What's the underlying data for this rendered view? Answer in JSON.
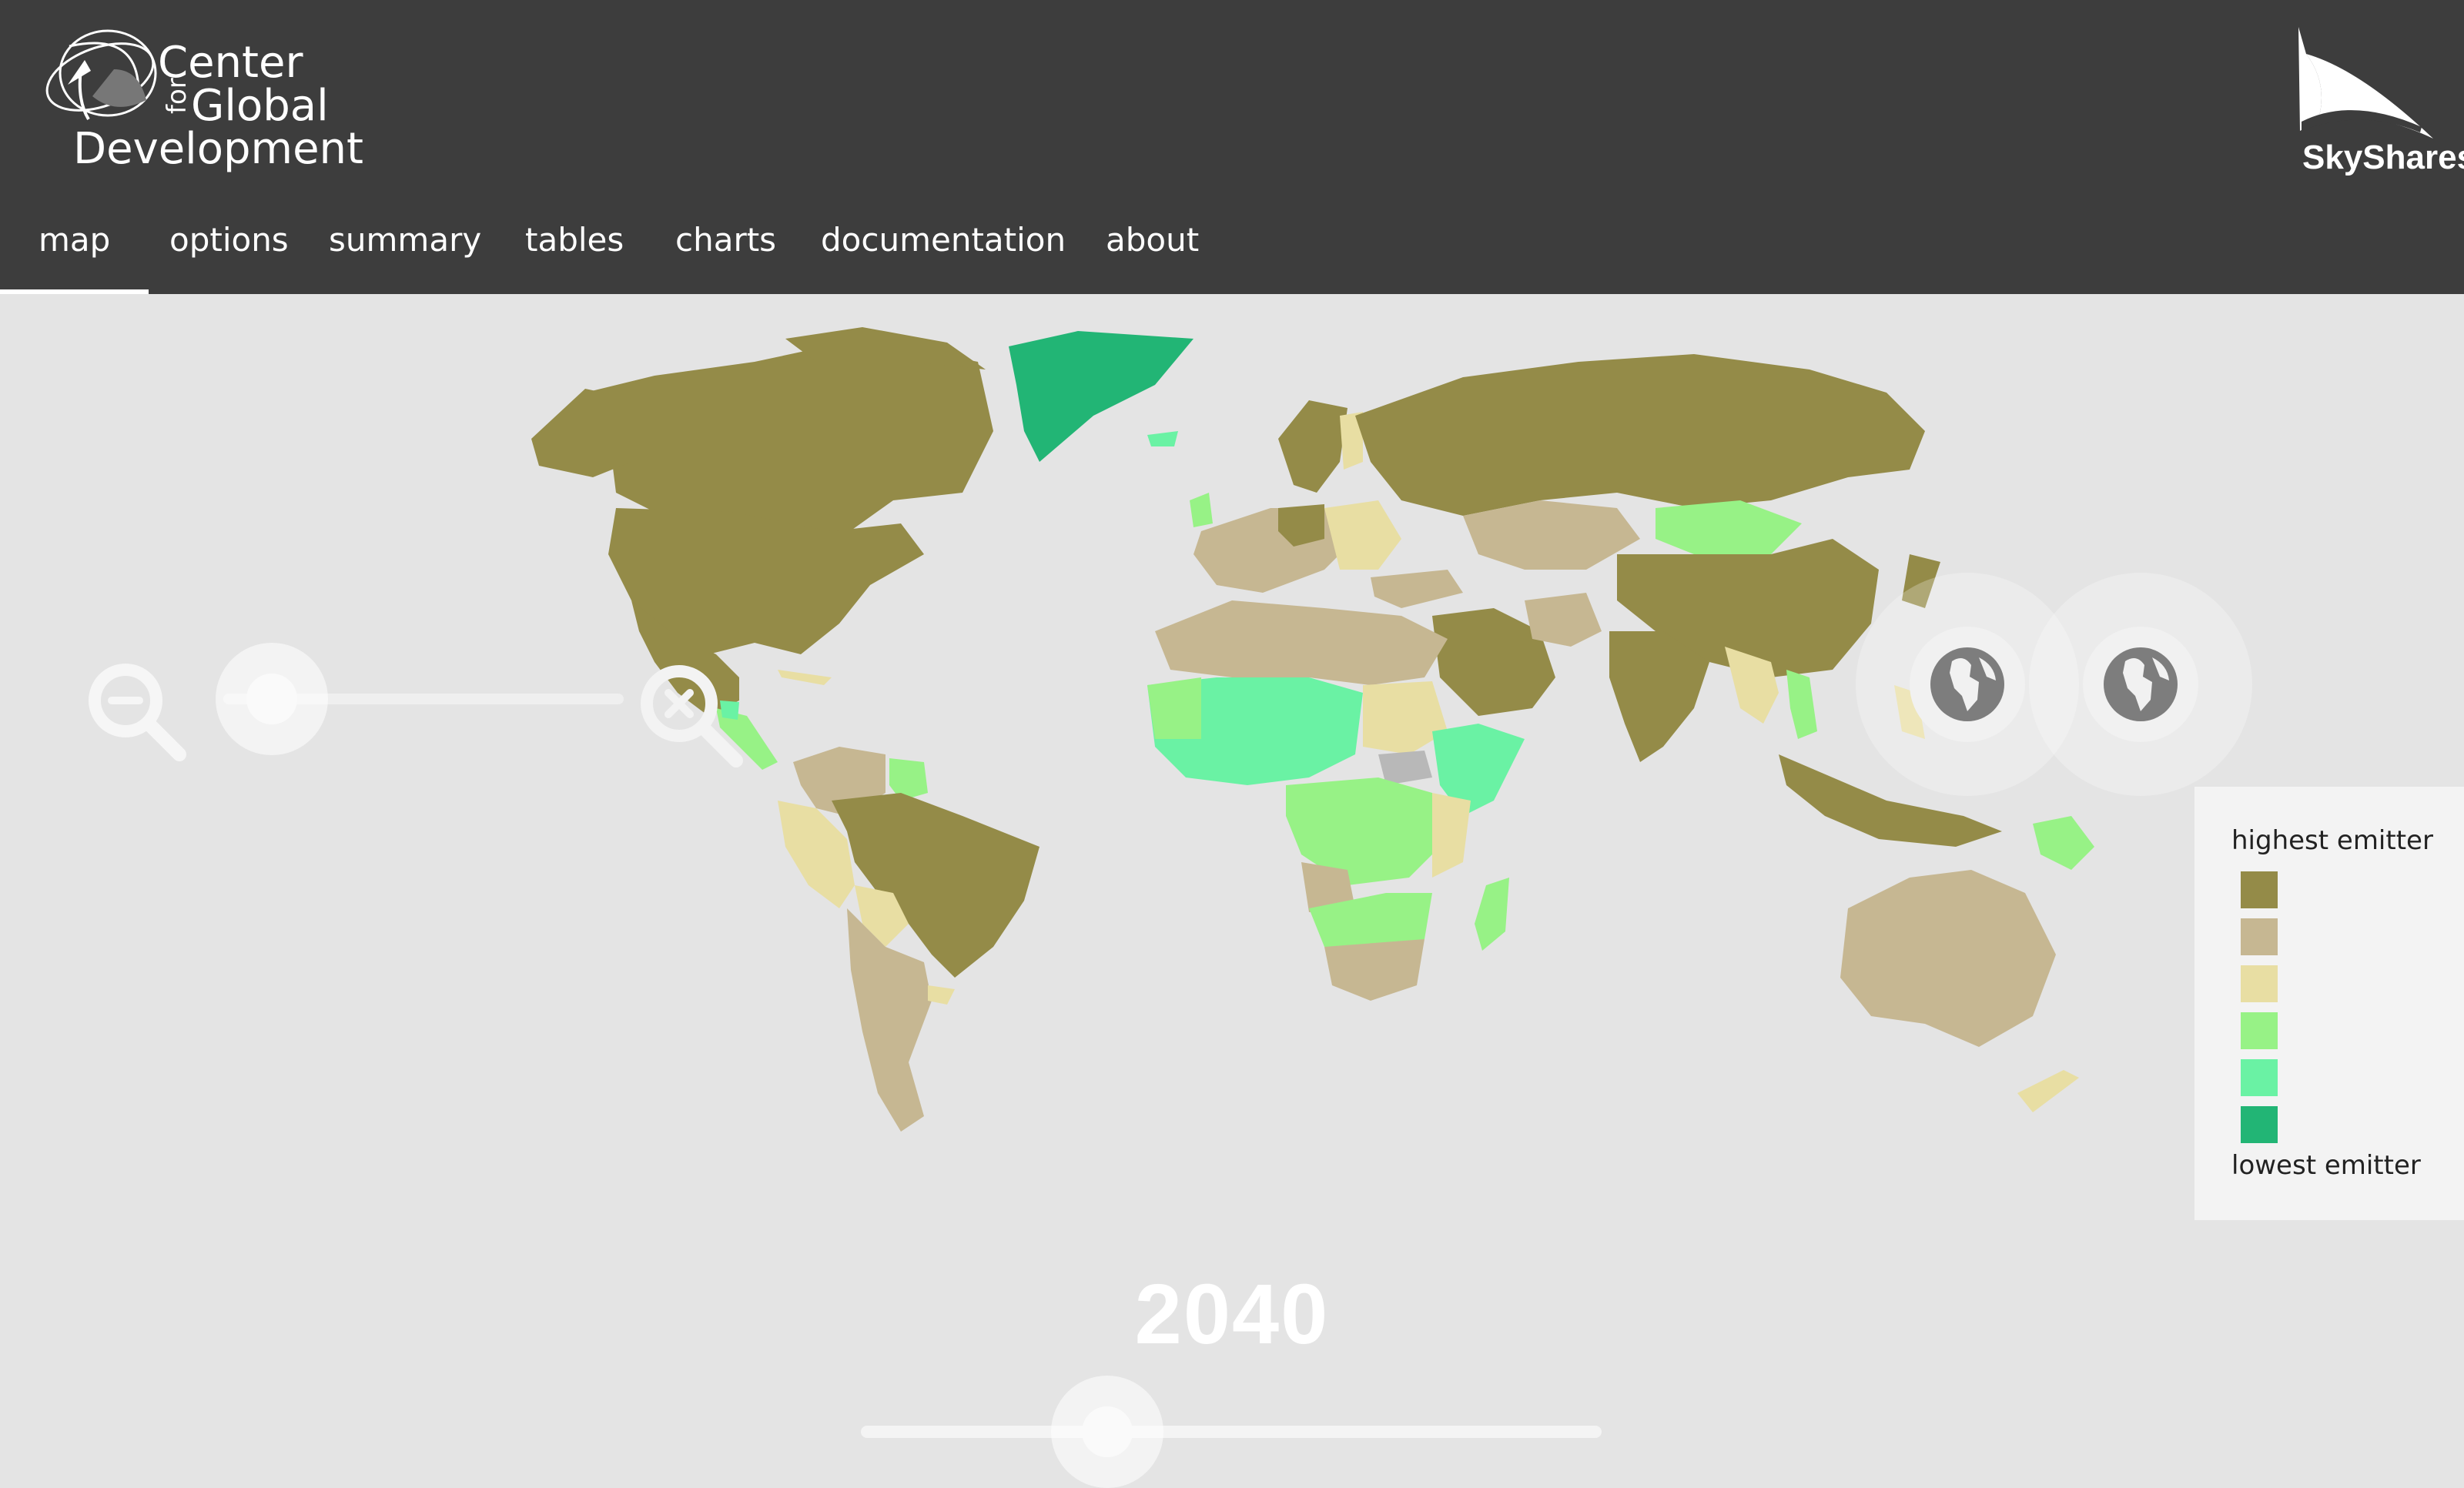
{
  "header": {
    "org_logo": {
      "line1": "Center",
      "for": "for",
      "line2": "Global",
      "line3": "Development"
    },
    "brand_logo": "SkyShares",
    "nav_tabs": [
      {
        "label": "map",
        "active": true
      },
      {
        "label": "options",
        "active": false
      },
      {
        "label": "summary",
        "active": false
      },
      {
        "label": "tables",
        "active": false
      },
      {
        "label": "charts",
        "active": false
      },
      {
        "label": "documentation",
        "active": false
      },
      {
        "label": "about",
        "active": false
      }
    ]
  },
  "map": {
    "year": "2040",
    "icons": {
      "zoom_out": "zoom-out-icon",
      "zoom_in": "zoom-in-icon",
      "globe_1": "globe-icon",
      "globe_2": "globe-icon"
    },
    "colors": {
      "background": "#e4e4e4",
      "no_data": "#b8b8b8"
    }
  },
  "legend": {
    "top_label": "highest emitter",
    "bottom_label": "lowest emitter",
    "colors": [
      "#948b48",
      "#c6b792",
      "#e8dea3",
      "#97f286",
      "#6af2a4",
      "#22b575"
    ]
  }
}
